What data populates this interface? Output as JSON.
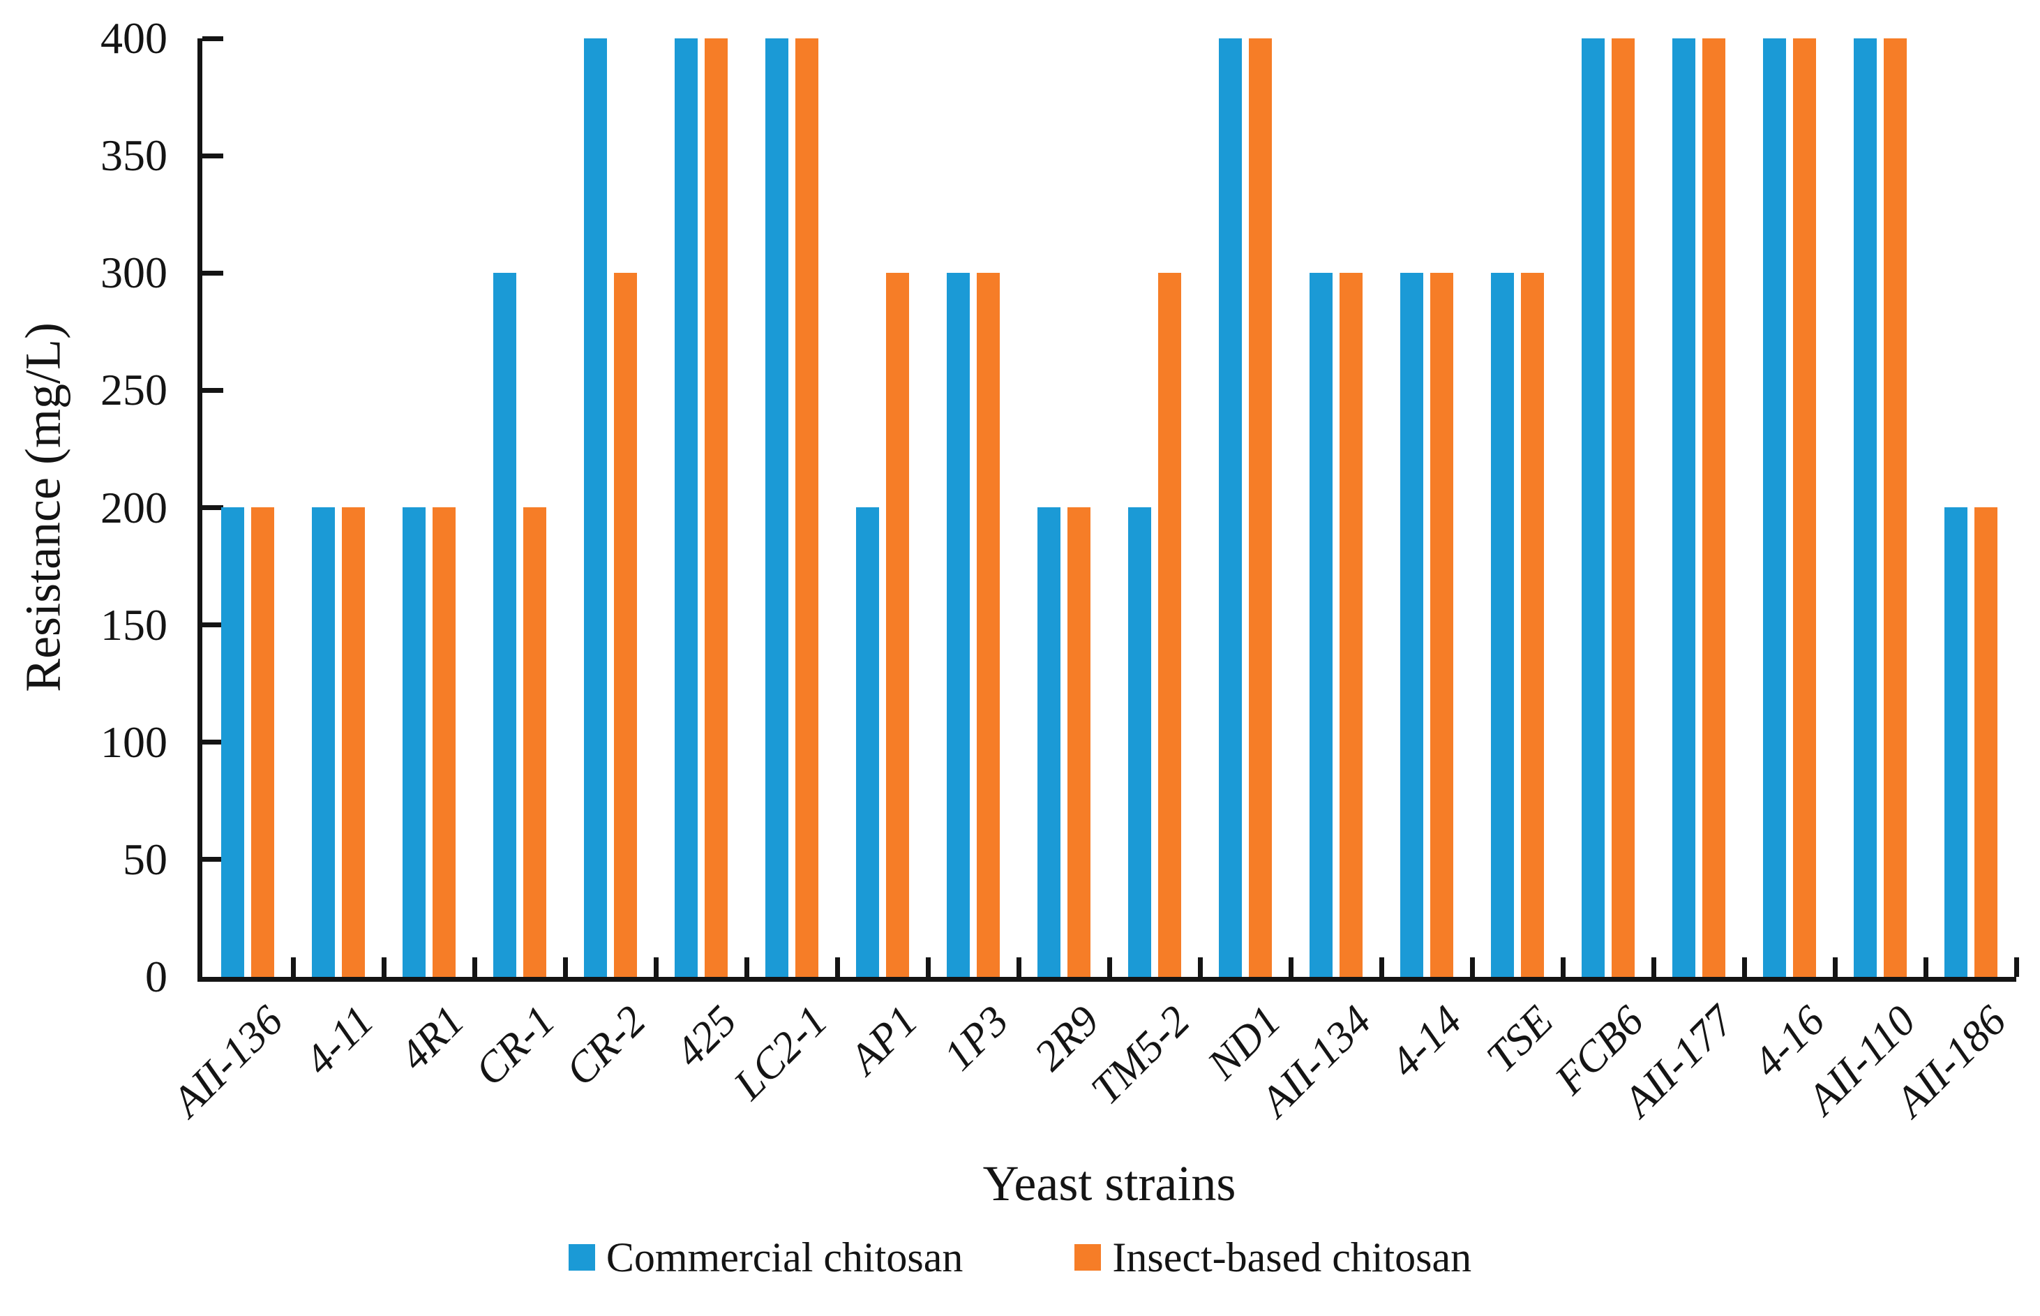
{
  "chart_data": {
    "type": "bar",
    "title": "",
    "xlabel": "Yeast strains",
    "ylabel": "Resistance (mg/L)",
    "categories": [
      "AII-136",
      "4-11",
      "4R1",
      "CR-1",
      "CR-2",
      "425",
      "LC2-1",
      "AP1",
      "1P3",
      "2R9",
      "TM5-2",
      "ND1",
      "AII-134",
      "4-14",
      "TSE",
      "FCB6",
      "AII-177",
      "4-16",
      "AII-110",
      "AII-186"
    ],
    "series": [
      {
        "name": "Commercial chitosan",
        "color": "#1B9AD6",
        "values": [
          200,
          200,
          200,
          300,
          400,
          400,
          400,
          200,
          300,
          200,
          200,
          400,
          300,
          300,
          300,
          400,
          400,
          400,
          400,
          200
        ]
      },
      {
        "name": "Insect-based chitosan",
        "color": "#F67D27",
        "values": [
          200,
          200,
          200,
          200,
          300,
          400,
          400,
          300,
          300,
          200,
          300,
          400,
          300,
          300,
          300,
          400,
          400,
          400,
          400,
          200
        ]
      }
    ],
    "ylim": [
      0,
      400
    ],
    "yticks": [
      0,
      50,
      100,
      150,
      200,
      250,
      300,
      350,
      400
    ],
    "grid": false,
    "legend_position": "bottom",
    "axis_color": "#141414",
    "text_color": "#141414",
    "background": "#ffffff"
  }
}
